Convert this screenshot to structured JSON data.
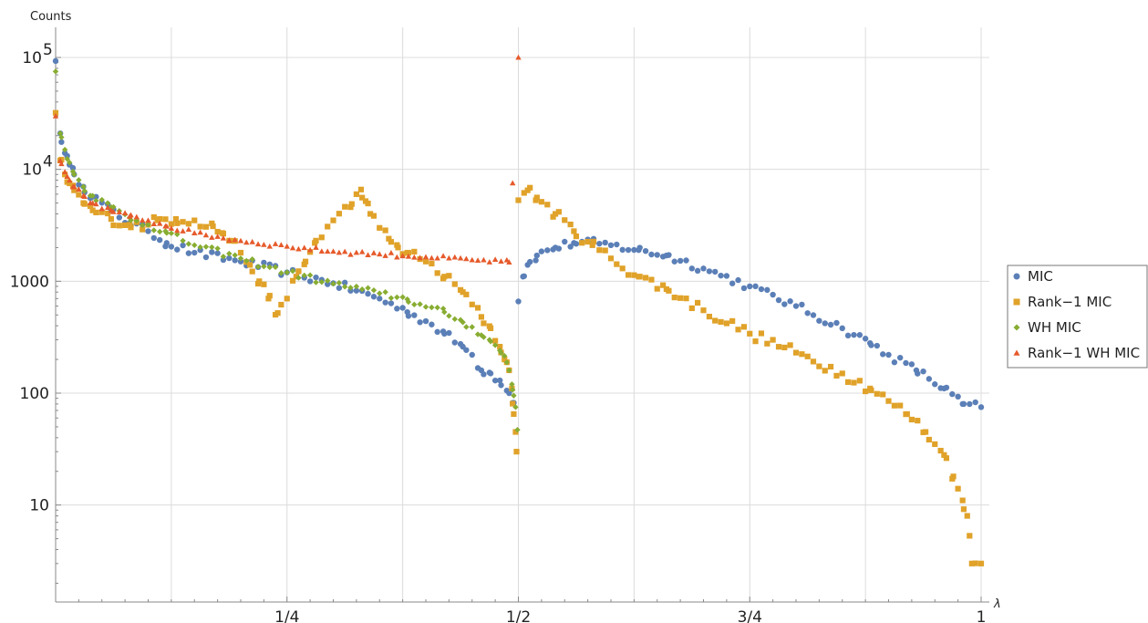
{
  "chart_data": {
    "type": "scatter",
    "ylabel": "Counts",
    "xlabel": "λ",
    "y_scale": "log",
    "xlim": [
      0,
      1
    ],
    "ylim": [
      2,
      150000
    ],
    "grid": true,
    "legend_placement": "right",
    "x_ticks": [
      {
        "value": 0.25,
        "label": "1/4"
      },
      {
        "value": 0.5,
        "label": "1/2"
      },
      {
        "value": 0.75,
        "label": "3/4"
      },
      {
        "value": 1,
        "label": "1"
      }
    ],
    "y_ticks": [
      {
        "value": 10,
        "label": "10"
      },
      {
        "value": 100,
        "label": "100"
      },
      {
        "value": 1000,
        "label": "1000"
      },
      {
        "value": 10000,
        "label": "10",
        "sup": "4"
      },
      {
        "value": 100000,
        "label": "10",
        "sup": "5"
      }
    ],
    "series": [
      {
        "name": "MIC",
        "color": "#5b7fb7",
        "marker": "circle",
        "anchors": [
          [
            0,
            93000
          ],
          [
            0.005,
            21000
          ],
          [
            0.01,
            14000
          ],
          [
            0.015,
            11000
          ],
          [
            0.02,
            9000
          ],
          [
            0.03,
            7000
          ],
          [
            0.04,
            5700
          ],
          [
            0.06,
            4300
          ],
          [
            0.08,
            3300
          ],
          [
            0.1,
            2800
          ],
          [
            0.12,
            2200
          ],
          [
            0.15,
            1800
          ],
          [
            0.2,
            1500
          ],
          [
            0.25,
            1200
          ],
          [
            0.3,
            960
          ],
          [
            0.35,
            700
          ],
          [
            0.38,
            530
          ],
          [
            0.4,
            440
          ],
          [
            0.42,
            340
          ],
          [
            0.44,
            260
          ],
          [
            0.45,
            220
          ],
          [
            0.46,
            160
          ],
          [
            0.47,
            150
          ],
          [
            0.48,
            130
          ],
          [
            0.49,
            100
          ],
          [
            0.495,
            82
          ],
          [
            0.5,
            660
          ],
          [
            0.505,
            1100
          ],
          [
            0.51,
            1400
          ],
          [
            0.52,
            1700
          ],
          [
            0.54,
            2000
          ],
          [
            0.56,
            2200
          ],
          [
            0.58,
            2200
          ],
          [
            0.6,
            2100
          ],
          [
            0.63,
            1900
          ],
          [
            0.66,
            1700
          ],
          [
            0.7,
            1300
          ],
          [
            0.75,
            900
          ],
          [
            0.8,
            600
          ],
          [
            0.85,
            380
          ],
          [
            0.88,
            280
          ],
          [
            0.9,
            220
          ],
          [
            0.93,
            160
          ],
          [
            0.96,
            110
          ],
          [
            0.98,
            80
          ],
          [
            1,
            75
          ]
        ],
        "step": 0.00625,
        "jitter": 0.04,
        "start": 0,
        "end": 1
      },
      {
        "name": "Rank−1 MIC",
        "color": "#e0a229",
        "marker": "square",
        "anchors": [
          [
            0,
            32000
          ],
          [
            0.005,
            12000
          ],
          [
            0.01,
            9000
          ],
          [
            0.015,
            7500
          ],
          [
            0.02,
            6500
          ],
          [
            0.03,
            5000
          ],
          [
            0.04,
            4300
          ],
          [
            0.06,
            3600
          ],
          [
            0.08,
            3200
          ],
          [
            0.1,
            3200
          ],
          [
            0.11,
            3500
          ],
          [
            0.13,
            3600
          ],
          [
            0.15,
            3500
          ],
          [
            0.17,
            3100
          ],
          [
            0.18,
            2700
          ],
          [
            0.19,
            2300
          ],
          [
            0.2,
            1800
          ],
          [
            0.21,
            1400
          ],
          [
            0.22,
            1000
          ],
          [
            0.23,
            700
          ],
          [
            0.24,
            520
          ],
          [
            0.25,
            700
          ],
          [
            0.26,
            1100
          ],
          [
            0.27,
            1500
          ],
          [
            0.28,
            2200
          ],
          [
            0.3,
            3500
          ],
          [
            0.32,
            4900
          ],
          [
            0.33,
            6600
          ],
          [
            0.335,
            5200
          ],
          [
            0.34,
            4000
          ],
          [
            0.35,
            3000
          ],
          [
            0.36,
            2400
          ],
          [
            0.37,
            2000
          ],
          [
            0.38,
            1800
          ],
          [
            0.4,
            1500
          ],
          [
            0.42,
            1100
          ],
          [
            0.44,
            800
          ],
          [
            0.45,
            620
          ],
          [
            0.46,
            480
          ],
          [
            0.47,
            380
          ],
          [
            0.48,
            260
          ],
          [
            0.485,
            200
          ],
          [
            0.49,
            160
          ],
          [
            0.493,
            110
          ],
          [
            0.495,
            65
          ],
          [
            0.497,
            45
          ],
          [
            0.498,
            30
          ],
          [
            0.5,
            5300
          ],
          [
            0.51,
            6500
          ],
          [
            0.52,
            5600
          ],
          [
            0.54,
            4000
          ],
          [
            0.56,
            2800
          ],
          [
            0.58,
            2100
          ],
          [
            0.6,
            1600
          ],
          [
            0.63,
            1100
          ],
          [
            0.66,
            850
          ],
          [
            0.7,
            550
          ],
          [
            0.75,
            340
          ],
          [
            0.8,
            230
          ],
          [
            0.85,
            150
          ],
          [
            0.88,
            110
          ],
          [
            0.9,
            85
          ],
          [
            0.92,
            65
          ],
          [
            0.94,
            45
          ],
          [
            0.95,
            35
          ],
          [
            0.96,
            28
          ],
          [
            0.97,
            18
          ],
          [
            0.975,
            14
          ],
          [
            0.98,
            11
          ],
          [
            0.985,
            8
          ],
          [
            0.99,
            3
          ],
          [
            1,
            3
          ]
        ],
        "step": 0.00625,
        "jitter": 0.05,
        "start": 0,
        "end": 1
      },
      {
        "name": "WH MIC",
        "color": "#88ad32",
        "marker": "diamond",
        "anchors": [
          [
            0,
            75000
          ],
          [
            0.005,
            21000
          ],
          [
            0.01,
            15000
          ],
          [
            0.015,
            11500
          ],
          [
            0.02,
            9000
          ],
          [
            0.03,
            7000
          ],
          [
            0.04,
            5800
          ],
          [
            0.06,
            4600
          ],
          [
            0.08,
            3700
          ],
          [
            0.1,
            3200
          ],
          [
            0.12,
            2700
          ],
          [
            0.15,
            2100
          ],
          [
            0.2,
            1600
          ],
          [
            0.25,
            1200
          ],
          [
            0.3,
            950
          ],
          [
            0.35,
            780
          ],
          [
            0.38,
            690
          ],
          [
            0.4,
            590
          ],
          [
            0.42,
            530
          ],
          [
            0.44,
            430
          ],
          [
            0.45,
            390
          ],
          [
            0.46,
            330
          ],
          [
            0.47,
            290
          ],
          [
            0.48,
            240
          ],
          [
            0.485,
            215
          ],
          [
            0.49,
            160
          ],
          [
            0.493,
            120
          ],
          [
            0.495,
            95
          ],
          [
            0.497,
            75
          ],
          [
            0.499,
            47
          ]
        ],
        "step": 0.00625,
        "jitter": 0.03,
        "start": 0,
        "end": 0.499
      },
      {
        "name": "Rank−1 WH MIC",
        "color": "#e65a2b",
        "marker": "triangle",
        "anchors": [
          [
            0,
            30000
          ],
          [
            0.005,
            12000
          ],
          [
            0.01,
            9500
          ],
          [
            0.015,
            8000
          ],
          [
            0.02,
            7000
          ],
          [
            0.03,
            5800
          ],
          [
            0.04,
            5000
          ],
          [
            0.06,
            4300
          ],
          [
            0.08,
            3800
          ],
          [
            0.1,
            3500
          ],
          [
            0.12,
            3100
          ],
          [
            0.15,
            2700
          ],
          [
            0.2,
            2300
          ],
          [
            0.25,
            2050
          ],
          [
            0.3,
            1850
          ],
          [
            0.35,
            1750
          ],
          [
            0.4,
            1650
          ],
          [
            0.45,
            1550
          ],
          [
            0.49,
            1480
          ],
          [
            0.5,
            100000
          ]
        ],
        "step": 0.00625,
        "jitter": 0.02,
        "start": 0,
        "end": 0.5
      }
    ]
  }
}
